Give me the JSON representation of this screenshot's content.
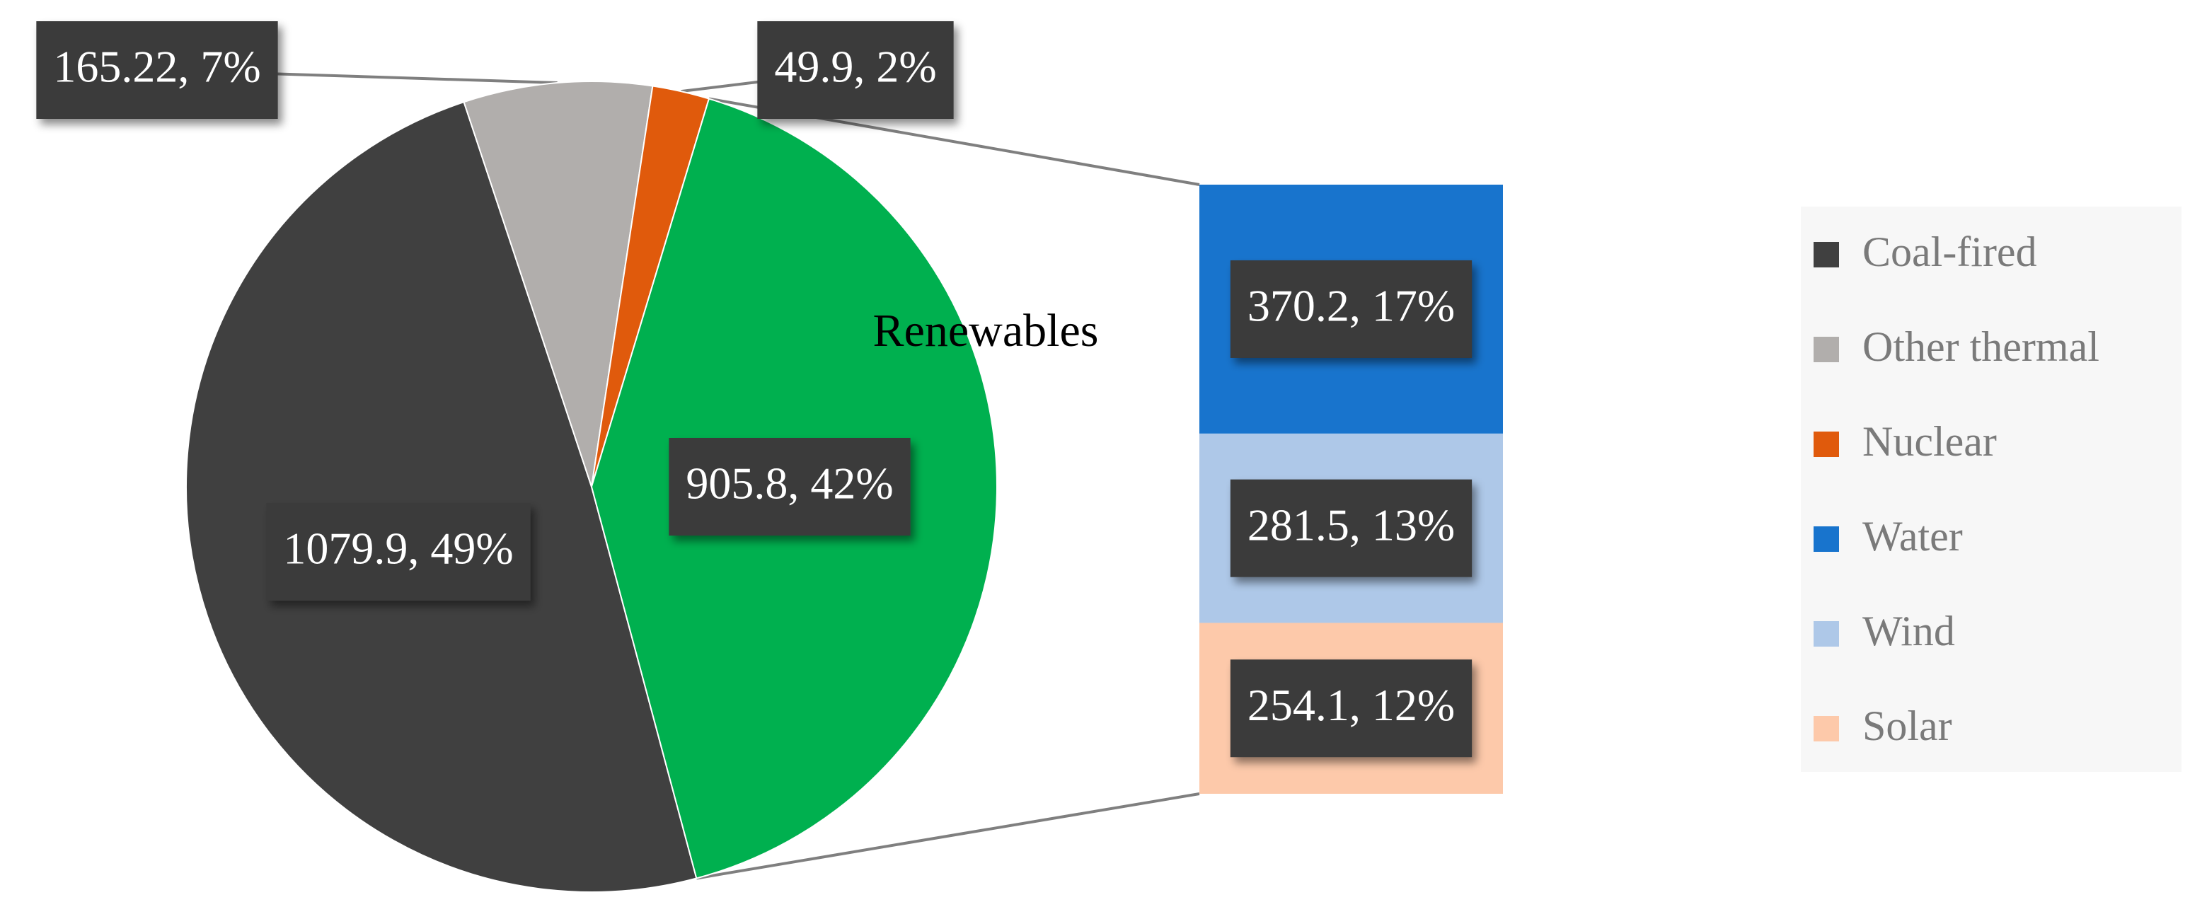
{
  "chart_data": {
    "type": "pie",
    "categories": [
      "Coal-fired",
      "Other thermal",
      "Nuclear",
      "Renewables"
    ],
    "values": [
      1079.9,
      165.22,
      49.9,
      905.8
    ],
    "value_labels": [
      "1079.9, 49%",
      "165.22, 7%",
      "49.9, 2%",
      "905.8, 42%"
    ],
    "colors": [
      "#404040",
      "#b1aeac",
      "#e05a0c",
      "#00b04f"
    ],
    "breakdown": {
      "type": "bar",
      "categories": [
        "Water",
        "Wind",
        "Solar"
      ],
      "values": [
        370.2,
        281.5,
        254.1
      ],
      "value_labels": [
        "370.2, 17%",
        "281.5, 13%",
        "254.1, 12%"
      ],
      "colors": [
        "#1874cd",
        "#aec8e8",
        "#fdc9aa"
      ]
    },
    "legend": "right"
  }
}
